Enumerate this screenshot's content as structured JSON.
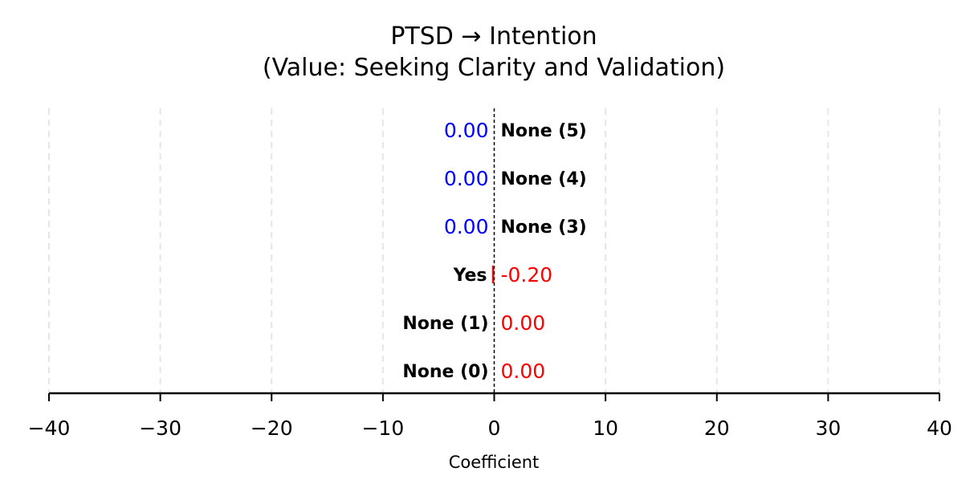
{
  "chart_data": {
    "type": "bar",
    "orientation": "horizontal",
    "title": "PTSD → Intention",
    "subtitle": "(Value: Seeking Clarity and Validation)",
    "xlabel": "Coefficient",
    "ylabel": "",
    "xlim": [
      -40,
      40
    ],
    "xticks": [
      -40,
      -30,
      -20,
      -10,
      0,
      10,
      20,
      30,
      40
    ],
    "xtick_labels": [
      "−40",
      "−30",
      "−20",
      "−10",
      "0",
      "10",
      "20",
      "30",
      "40"
    ],
    "grid": true,
    "categories": [
      "None (0)",
      "None (1)",
      "Yes",
      "None (3)",
      "None (4)",
      "None (5)"
    ],
    "values": [
      0.0,
      0.0,
      -0.2,
      0.0,
      0.0,
      0.0
    ],
    "value_labels": [
      "0.00",
      "0.00",
      "-0.20",
      "0.00",
      "0.00",
      "0.00"
    ],
    "value_label_colors": [
      "#ff0000",
      "#ff0000",
      "#ff0000",
      "#0000ff",
      "#0000ff",
      "#0000ff"
    ],
    "bar_color": "#ff0000",
    "zero_line_color": "#000000",
    "grid_color": "#e6e6e6"
  }
}
